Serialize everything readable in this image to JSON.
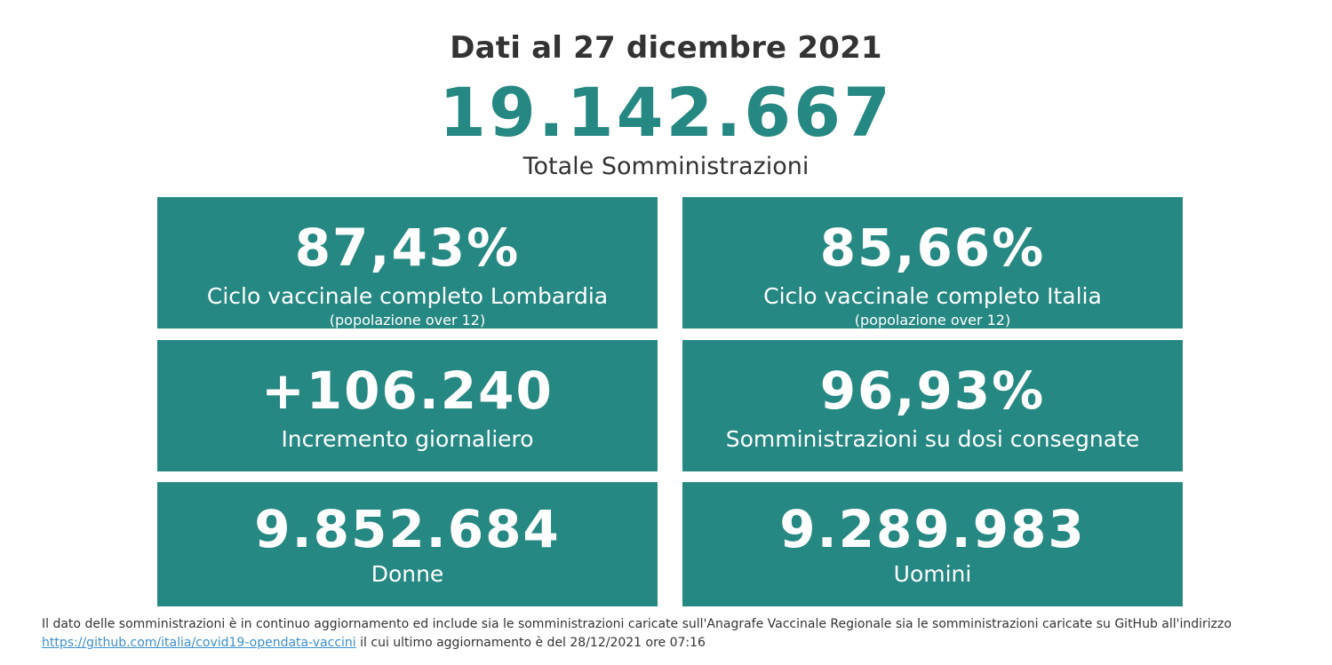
{
  "header": {
    "date_title": "Dati al 27 dicembre 2021",
    "total_value": "19.142.667",
    "total_label": "Totale Somministrazioni"
  },
  "cards": [
    {
      "value": "87,43%",
      "label": "Ciclo vaccinale completo Lombardia",
      "sublabel": "(popolazione over 12)"
    },
    {
      "value": "85,66%",
      "label": "Ciclo vaccinale completo Italia",
      "sublabel": "(popolazione over 12)"
    },
    {
      "value": "+106.240",
      "label": "Incremento giornaliero"
    },
    {
      "value": "96,93%",
      "label": "Somministrazioni su dosi consegnate"
    },
    {
      "value": "9.852.684",
      "label": "Donne"
    },
    {
      "value": "9.289.983",
      "label": "Uomini"
    }
  ],
  "footer": {
    "text_before": "Il dato delle somministrazioni è in continuo aggiornamento ed include sia le somministrazioni caricate sull'Anagrafe Vaccinale Regionale sia le somministrazioni caricate su GitHub all'indirizzo",
    "link_text": "https://github.com/italia/covid19-opendata-vaccini",
    "text_after": "il cui ultimo aggiornamento è del 28/12/2021 ore 07:16"
  },
  "colors": {
    "accent": "#268882",
    "text": "#333333",
    "link": "#3a8fd0"
  }
}
